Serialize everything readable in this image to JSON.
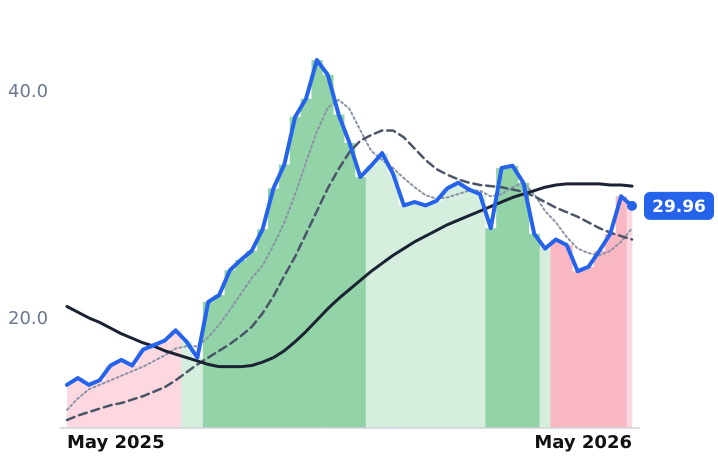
{
  "chart_data": {
    "type": "line",
    "categories": [
      "May 2025",
      null,
      null,
      null,
      null,
      null,
      null,
      null,
      null,
      null,
      null,
      null,
      null,
      null,
      null,
      null,
      null,
      null,
      null,
      null,
      null,
      null,
      null,
      null,
      null,
      null,
      null,
      null,
      null,
      null,
      null,
      null,
      null,
      null,
      null,
      null,
      null,
      null,
      null,
      null,
      null,
      null,
      null,
      null,
      null,
      null,
      null,
      null,
      null,
      null,
      null,
      null,
      "May 2026"
    ],
    "series": [
      {
        "color": "#2563eb",
        "style": "solid",
        "width": 4,
        "fill_colors": [
          "#fdd8e0",
          "#fdd8e0",
          "#fdd8e0",
          "#fdd8e0",
          "#fdd8e0",
          "#fdd8e0",
          "#fdd8e0",
          "#fdd8e0",
          "#fdd8e0",
          "#fdd8e0",
          "#fdd8e0",
          "#d6eedd",
          "#d6eedd",
          "#93d3a8",
          "#93d3a8",
          "#93d3a8",
          "#93d3a8",
          "#93d3a8",
          "#93d3a8",
          "#93d3a8",
          "#93d3a8",
          "#93d3a8",
          "#93d3a8",
          "#93d3a8",
          "#93d3a8",
          "#93d3a8",
          "#93d3a8",
          "#93d3a8",
          "#d6eedd",
          "#d6eedd",
          "#d6eedd",
          "#d6eedd",
          "#d6eedd",
          "#d6eedd",
          "#d6eedd",
          "#d6eedd",
          "#d6eedd",
          "#d6eedd",
          "#d6eedd",
          "#93d3a8",
          "#93d3a8",
          "#93d3a8",
          "#93d3a8",
          "#93d3a8",
          "#d6eedd",
          "#f9b6c3",
          "#f9b6c3",
          "#f9b6c3",
          "#f9b6c3",
          "#f9b6c3",
          "#f9b6c3",
          "#f9b6c3",
          "#fdd8e0"
        ],
        "values": [
          14.2,
          14.8,
          14.2,
          14.6,
          15.9,
          16.4,
          15.9,
          17.3,
          17.7,
          18.1,
          19.0,
          18.0,
          16.6,
          21.5,
          22.1,
          24.3,
          25.2,
          26.0,
          27.9,
          31.5,
          33.6,
          37.8,
          39.4,
          42.8,
          41.5,
          38.0,
          35.5,
          32.5,
          33.5,
          34.6,
          32.8,
          30.0,
          30.3,
          30.0,
          30.4,
          31.5,
          32.0,
          31.4,
          31.0,
          28.0,
          33.3,
          33.5,
          32.0,
          27.5,
          26.2,
          27.0,
          26.5,
          24.2,
          24.6,
          26.0,
          27.5,
          30.8,
          29.96
        ]
      },
      {
        "color": "#8a94a6",
        "style": "dotted",
        "width": 2,
        "values": [
          12.0,
          13.0,
          13.8,
          14.2,
          14.6,
          15.0,
          15.4,
          15.8,
          16.3,
          16.8,
          17.4,
          17.6,
          17.6,
          18.4,
          19.5,
          20.8,
          22.2,
          23.6,
          24.7,
          26.5,
          28.5,
          31.0,
          33.8,
          36.5,
          38.6,
          39.3,
          38.5,
          36.6,
          34.8,
          34.0,
          33.3,
          32.4,
          31.6,
          30.9,
          30.6,
          30.7,
          31.0,
          31.3,
          31.3,
          30.8,
          31.0,
          31.6,
          32.0,
          31.0,
          29.5,
          28.5,
          27.2,
          26.2,
          25.8,
          25.6,
          26.0,
          26.8,
          28.0
        ]
      },
      {
        "color": "#4b5568",
        "style": "dashed",
        "width": 2.5,
        "values": [
          11.1,
          11.5,
          11.8,
          12.1,
          12.4,
          12.6,
          12.9,
          13.2,
          13.6,
          14.0,
          14.6,
          15.3,
          16.0,
          16.6,
          17.2,
          17.8,
          18.5,
          19.3,
          20.5,
          22.0,
          23.8,
          25.5,
          27.5,
          29.5,
          31.5,
          33.2,
          34.7,
          35.7,
          36.2,
          36.6,
          36.6,
          36.0,
          35.0,
          34.0,
          33.2,
          32.7,
          32.3,
          32.0,
          31.8,
          31.7,
          31.6,
          31.4,
          31.2,
          30.8,
          30.3,
          29.8,
          29.4,
          29.0,
          28.5,
          28.0,
          27.6,
          27.3,
          27.0
        ]
      },
      {
        "color": "#1a2233",
        "style": "solid",
        "width": 3,
        "values": [
          21.1,
          20.6,
          20.1,
          19.7,
          19.2,
          18.7,
          18.3,
          17.9,
          17.6,
          17.2,
          16.9,
          16.6,
          16.3,
          16.0,
          15.8,
          15.8,
          15.8,
          15.9,
          16.2,
          16.6,
          17.2,
          18.0,
          18.9,
          19.9,
          20.9,
          21.8,
          22.6,
          23.4,
          24.2,
          24.9,
          25.6,
          26.2,
          26.8,
          27.3,
          27.8,
          28.3,
          28.7,
          29.1,
          29.5,
          29.9,
          30.3,
          30.7,
          31.0,
          31.3,
          31.6,
          31.8,
          31.9,
          31.9,
          31.9,
          31.9,
          31.8,
          31.8,
          31.7
        ]
      }
    ],
    "ylim": [
      10.4,
      48
    ],
    "yticks": [
      {
        "value": 20,
        "label": "20.0"
      },
      {
        "value": 40,
        "label": "40.0"
      }
    ],
    "grid": false
  }
}
